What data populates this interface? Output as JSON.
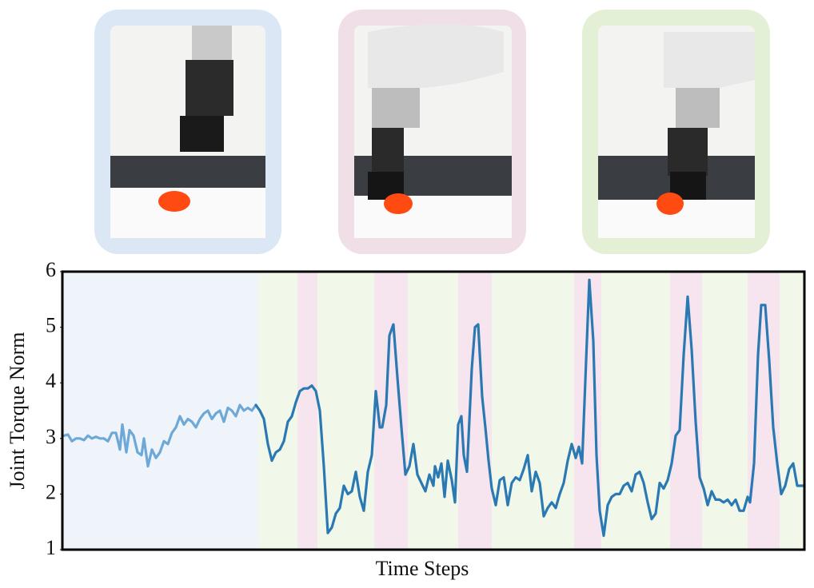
{
  "chart_data": {
    "type": "line",
    "ylabel": "Joint Torque Norm",
    "xlabel": "Time Steps",
    "xlim": [
      0,
      928
    ],
    "ylim": [
      1,
      6
    ],
    "yticks": [
      1,
      2,
      3,
      4,
      5,
      6
    ],
    "phases": [
      {
        "start": 0,
        "end": 245,
        "color": "#eef4fa"
      },
      {
        "start": 245,
        "end": 294,
        "color": "#f1f8ea"
      },
      {
        "start": 294,
        "end": 319,
        "color": "#f6e5ee"
      },
      {
        "start": 319,
        "end": 390,
        "color": "#f1f8ea"
      },
      {
        "start": 390,
        "end": 432,
        "color": "#f6e5ee"
      },
      {
        "start": 432,
        "end": 495,
        "color": "#f1f8ea"
      },
      {
        "start": 495,
        "end": 537,
        "color": "#f6e5ee"
      },
      {
        "start": 537,
        "end": 640,
        "color": "#f1f8ea"
      },
      {
        "start": 640,
        "end": 674,
        "color": "#f6e5ee"
      },
      {
        "start": 674,
        "end": 760,
        "color": "#f1f8ea"
      },
      {
        "start": 760,
        "end": 800,
        "color": "#f6e5ee"
      },
      {
        "start": 800,
        "end": 857,
        "color": "#f1f8ea"
      },
      {
        "start": 857,
        "end": 897,
        "color": "#f6e5ee"
      },
      {
        "start": 897,
        "end": 928,
        "color": "#f1f8ea"
      }
    ],
    "series": [
      {
        "color": "#6ea8d6",
        "x": [
          2,
          7,
          12,
          17,
          22,
          27,
          32,
          37,
          42,
          47,
          52,
          57,
          62,
          67,
          72,
          75,
          80,
          84,
          89,
          94,
          99,
          102,
          107,
          112,
          117,
          122,
          127,
          132,
          137,
          142,
          147,
          152,
          157,
          162,
          167,
          172,
          177,
          182,
          187,
          192,
          197,
          202,
          207,
          212,
          217,
          222,
          227,
          232,
          237,
          242
        ],
        "values": [
          3.05,
          3.07,
          2.95,
          3.0,
          3.0,
          2.97,
          3.05,
          3.0,
          3.03,
          3.0,
          3.0,
          2.95,
          3.1,
          3.1,
          2.8,
          3.25,
          2.75,
          3.15,
          3.05,
          2.75,
          2.7,
          3.0,
          2.5,
          2.8,
          2.65,
          2.75,
          2.95,
          2.9,
          3.1,
          3.2,
          3.4,
          3.25,
          3.35,
          3.3,
          3.2,
          3.35,
          3.45,
          3.5,
          3.35,
          3.45,
          3.5,
          3.3,
          3.55,
          3.5,
          3.4,
          3.6,
          3.5,
          3.55,
          3.5,
          3.6
        ]
      },
      {
        "color": "#2b79b2",
        "x": [
          242,
          247,
          252,
          257,
          262,
          267,
          272,
          277,
          282,
          287,
          292,
          297,
          302,
          307,
          312,
          317,
          322,
          327,
          332,
          337,
          342,
          347,
          352,
          357,
          362,
          367,
          372,
          377,
          382,
          387,
          392,
          397,
          400,
          405,
          409,
          414,
          419,
          424,
          429,
          434,
          439,
          444,
          449,
          454,
          459,
          464,
          466,
          470,
          474,
          478,
          482,
          487,
          491,
          495,
          499,
          502,
          506,
          512,
          516,
          520,
          525,
          529,
          533,
          537,
          542,
          547,
          552,
          557,
          562,
          567,
          572,
          577,
          582,
          587,
          592,
          597,
          602,
          607,
          612,
          617,
          622,
          627,
          632,
          637,
          642,
          646,
          650,
          655,
          659,
          664,
          668,
          672,
          677,
          682,
          687,
          692,
          697,
          702,
          707,
          712,
          717,
          722,
          727,
          732,
          737,
          742,
          747,
          752,
          757,
          762,
          767,
          772,
          777,
          782,
          787,
          792,
          797,
          802,
          807,
          812,
          817,
          822,
          827,
          832,
          837,
          842,
          847,
          852,
          857,
          860,
          865,
          870,
          874,
          879,
          884,
          889,
          894,
          899,
          904,
          909,
          914,
          919,
          926
        ],
        "values": [
          3.6,
          3.5,
          3.35,
          2.9,
          2.6,
          2.75,
          2.8,
          2.95,
          3.3,
          3.4,
          3.65,
          3.85,
          3.9,
          3.9,
          3.95,
          3.85,
          3.5,
          2.5,
          1.3,
          1.4,
          1.65,
          1.75,
          2.15,
          2.0,
          2.05,
          2.4,
          1.95,
          1.7,
          2.4,
          2.7,
          3.85,
          3.2,
          3.2,
          3.6,
          4.85,
          5.05,
          4.1,
          3.2,
          2.35,
          2.5,
          2.9,
          2.35,
          2.2,
          2.05,
          2.35,
          2.15,
          2.5,
          2.3,
          2.55,
          1.95,
          2.6,
          2.25,
          1.85,
          3.25,
          3.4,
          2.7,
          2.4,
          4.25,
          5.0,
          5.05,
          3.75,
          3.2,
          2.6,
          2.1,
          1.8,
          2.25,
          2.3,
          1.8,
          2.2,
          2.3,
          2.25,
          2.45,
          2.7,
          2.05,
          2.4,
          2.2,
          1.6,
          1.75,
          1.85,
          1.75,
          2.0,
          2.2,
          2.6,
          2.9,
          2.65,
          2.85,
          2.55,
          4.4,
          5.85,
          4.75,
          2.7,
          1.7,
          1.25,
          1.8,
          1.95,
          2.0,
          2.0,
          2.15,
          2.2,
          2.05,
          2.35,
          2.4,
          2.2,
          1.85,
          1.55,
          1.65,
          2.2,
          2.1,
          2.25,
          2.55,
          3.05,
          3.15,
          4.5,
          5.55,
          4.6,
          3.3,
          2.3,
          2.1,
          1.8,
          2.05,
          1.9,
          1.9,
          1.85,
          1.9,
          1.8,
          1.9,
          1.7,
          1.7,
          1.95,
          1.85,
          2.55,
          4.5,
          5.4,
          5.4,
          4.4,
          3.2,
          2.55,
          2.0,
          2.15,
          2.45,
          2.55,
          2.15,
          2.15
        ]
      }
    ]
  }
}
